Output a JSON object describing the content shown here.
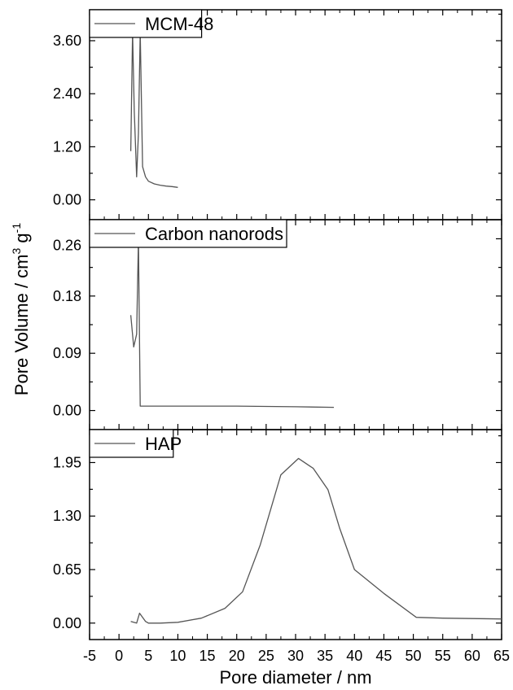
{
  "chart_data": {
    "type": "line",
    "xlabel": "Pore diameter / nm",
    "ylabel": "Pore Volume / cm",
    "ylabel_sup1": "3",
    "ylabel_mid": " g",
    "ylabel_sup2": "-1",
    "xlim": [
      -5,
      65
    ],
    "xticks": [
      -5,
      0,
      5,
      10,
      15,
      20,
      25,
      30,
      35,
      40,
      45,
      50,
      55,
      60,
      65
    ],
    "grid": false,
    "legend_placement": "top-left",
    "line_color": "#555555",
    "panels": [
      {
        "series_name": "MCM-48",
        "ylim": [
          -0.45,
          4.3
        ],
        "yticks": [
          "0.00",
          "1.20",
          "2.40",
          "3.60"
        ],
        "x": [
          2.0,
          2.3,
          2.6,
          3.0,
          3.3,
          3.6,
          4.0,
          4.5,
          5.0,
          6.0,
          7.0,
          8.0,
          9.0,
          10.0
        ],
        "y": [
          1.1,
          3.8,
          2.0,
          0.52,
          1.5,
          3.8,
          0.75,
          0.52,
          0.42,
          0.36,
          0.33,
          0.31,
          0.3,
          0.28
        ]
      },
      {
        "series_name": "Carbon nanorods",
        "ylim": [
          -0.03,
          0.3
        ],
        "yticks": [
          "0.00",
          "0.09",
          "0.18",
          "0.26"
        ],
        "x": [
          2.0,
          2.5,
          3.0,
          3.3,
          3.6,
          10.0,
          20.0,
          30.0,
          36.5
        ],
        "y": [
          0.15,
          0.1,
          0.12,
          0.27,
          0.007,
          0.007,
          0.007,
          0.006,
          0.005
        ]
      },
      {
        "series_name": "HAP",
        "ylim": [
          -0.2,
          2.35
        ],
        "yticks": [
          "0.00",
          "0.65",
          "1.30",
          "1.95"
        ],
        "x": [
          2.0,
          3.0,
          3.5,
          4.5,
          5.0,
          7.0,
          10.0,
          14.0,
          18.0,
          21.0,
          24.0,
          27.5,
          30.5,
          33.0,
          35.5,
          37.5,
          40.0,
          45.0,
          50.5,
          55.0,
          60.0,
          65.0
        ],
        "y": [
          0.02,
          0.0,
          0.12,
          0.02,
          0.0,
          0.0,
          0.01,
          0.06,
          0.18,
          0.38,
          0.95,
          1.8,
          2.0,
          1.88,
          1.62,
          1.15,
          0.65,
          0.36,
          0.07,
          0.06,
          0.055,
          0.05
        ]
      }
    ]
  }
}
